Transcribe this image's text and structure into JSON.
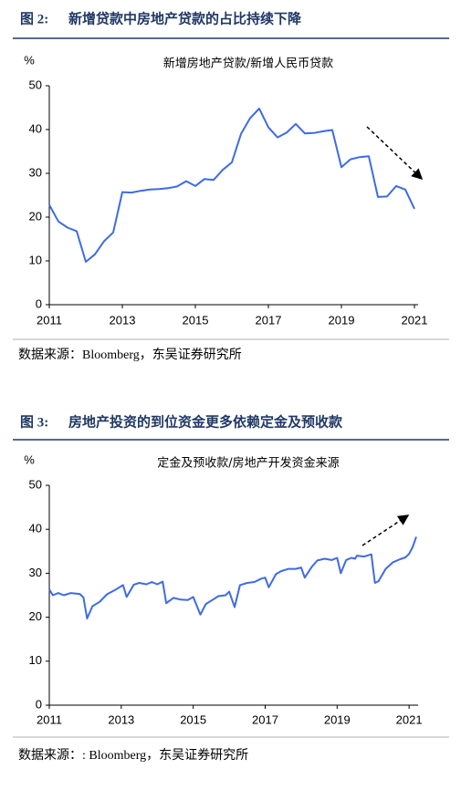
{
  "chart_data": [
    {
      "type": "line",
      "figure_label": "图 2:",
      "figure_title": "新增贷款中房地产贷款的占比持续下降",
      "title": "新增房地产贷款/新增人民币贷款",
      "y_unit": "%",
      "source": "数据来源：Bloomberg，东吴证券研究所",
      "x": [
        2011.0,
        2011.25,
        2011.5,
        2011.75,
        2012.0,
        2012.25,
        2012.5,
        2012.75,
        2013.0,
        2013.25,
        2013.5,
        2013.75,
        2014.0,
        2014.25,
        2014.5,
        2014.75,
        2015.0,
        2015.25,
        2015.5,
        2015.75,
        2016.0,
        2016.25,
        2016.5,
        2016.75,
        2017.0,
        2017.25,
        2017.5,
        2017.75,
        2018.0,
        2018.25,
        2018.5,
        2018.75,
        2019.0,
        2019.25,
        2019.5,
        2019.75,
        2020.0,
        2020.25,
        2020.5,
        2020.75,
        2021.0
      ],
      "series": [
        {
          "color": "#3d6be6",
          "values": [
            22.8,
            19,
            17.6,
            16.8,
            9.8,
            11.5,
            14.5,
            16.5,
            25.7,
            25.6,
            26,
            26.3,
            26.4,
            26.6,
            27,
            28.2,
            27.1,
            28.7,
            28.5,
            30.8,
            32.5,
            39,
            42.6,
            44.8,
            40.5,
            38.2,
            39.3,
            41.3,
            39.1,
            39.2,
            39.6,
            39.9,
            31.4,
            33.2,
            33.7,
            33.9,
            24.6,
            24.7,
            27.1,
            26.3,
            21.9
          ]
        }
      ],
      "xlim": [
        2011,
        2021.1
      ],
      "ylim": [
        0,
        50
      ],
      "xticks": [
        2011,
        2013,
        2015,
        2017,
        2019,
        2021
      ],
      "yticks": [
        0,
        10,
        20,
        30,
        40,
        50
      ]
    },
    {
      "type": "line",
      "figure_label": "图 3:",
      "figure_title": "房地产投资的到位资金更多依赖定金及预收款",
      "title": "定金及预收款/房地产开发资金来源",
      "y_unit": "%",
      "source": "数据来源：: Bloomberg，东吴证券研究所",
      "x": [
        2011.0,
        2011.1,
        2011.25,
        2011.4,
        2011.6,
        2011.85,
        2011.95,
        2012.05,
        2012.2,
        2012.4,
        2012.6,
        2012.85,
        2013.05,
        2013.15,
        2013.35,
        2013.5,
        2013.7,
        2013.85,
        2014.0,
        2014.15,
        2014.25,
        2014.45,
        2014.65,
        2014.85,
        2015.0,
        2015.2,
        2015.35,
        2015.55,
        2015.7,
        2015.9,
        2016.0,
        2016.15,
        2016.3,
        2016.5,
        2016.7,
        2016.9,
        2017.0,
        2017.1,
        2017.3,
        2017.45,
        2017.65,
        2017.85,
        2018.0,
        2018.1,
        2018.3,
        2018.45,
        2018.65,
        2018.85,
        2019.0,
        2019.1,
        2019.25,
        2019.4,
        2019.5,
        2019.55,
        2019.75,
        2019.95,
        2020.05,
        2020.15,
        2020.35,
        2020.55,
        2020.75,
        2020.9,
        2021.0,
        2021.1,
        2021.2
      ],
      "series": [
        {
          "color": "#3d6be6",
          "values": [
            26.3,
            25,
            25.5,
            25,
            25.5,
            25.3,
            24.5,
            19.7,
            22.5,
            23.5,
            25.2,
            26.3,
            27.3,
            24.6,
            27.4,
            27.8,
            27.5,
            28,
            27.5,
            28.1,
            23.2,
            24.4,
            24,
            23.9,
            24.6,
            20.6,
            23,
            24,
            24.8,
            25,
            25.8,
            22.3,
            27.3,
            27.8,
            28,
            28.8,
            29,
            26.8,
            29.8,
            30.5,
            31,
            31,
            31.3,
            29,
            31.5,
            32.9,
            33.3,
            33,
            33.5,
            30,
            33,
            33.5,
            33.3,
            34,
            33.8,
            34.3,
            27.8,
            28.2,
            31,
            32.5,
            33.2,
            33.6,
            34.4,
            36,
            38.3
          ]
        }
      ],
      "xlim": [
        2011,
        2021.25
      ],
      "ylim": [
        0,
        50
      ],
      "xticks": [
        2011,
        2013,
        2015,
        2017,
        2019,
        2021
      ],
      "yticks": [
        0,
        10,
        20,
        30,
        40,
        50
      ]
    }
  ]
}
